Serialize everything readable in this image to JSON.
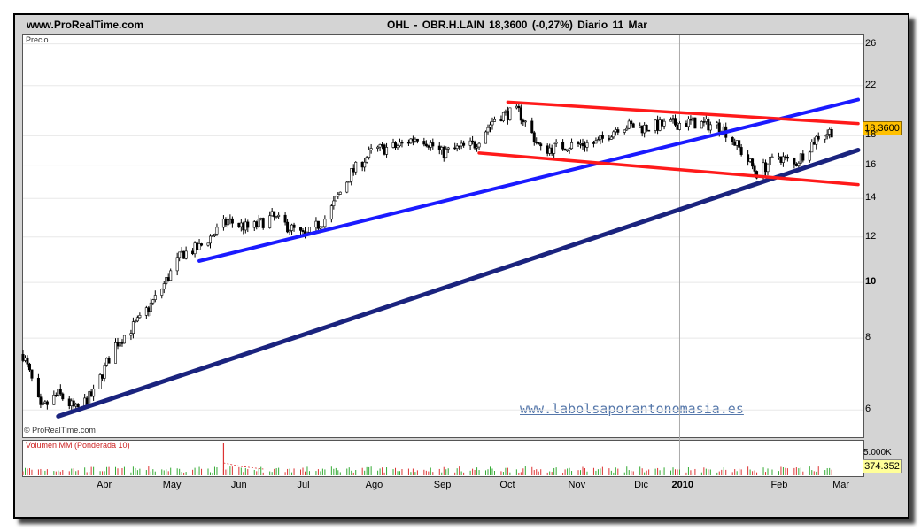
{
  "header": {
    "site": "www.ProRealTime.com",
    "quote": "OHL - OBR.H.LAIN    18,3600 (-0,27%)   Diario  11 Mar"
  },
  "panel_labels": {
    "price": "Precio",
    "copyright": "© ProRealTime.com",
    "volume": "Volumen MM (Ponderada 10)"
  },
  "watermark": "www.labolsaporantonomasia.es",
  "last_price_label": "18,3600",
  "last_volume_label": "374.352",
  "volume_scale_label": "5.000K",
  "colors": {
    "candle": "#000000",
    "blue_trendline": "#1a1aff",
    "navy_trendline": "#1a237e",
    "red_channel": "#ff1a1a",
    "volume_up": "#33aa33",
    "volume_down": "#dd3333",
    "last_price_bg": "#ffc000"
  },
  "chart_data": {
    "type": "candlestick",
    "title": "OHL - OBR.H.LAIN",
    "y_scale": "log",
    "ylim": [
      5.4,
      27
    ],
    "y_ticks": [
      26,
      22,
      18,
      16,
      14,
      12,
      10,
      8,
      6
    ],
    "x_ticks": [
      "Abr",
      "May",
      "Jun",
      "Jul",
      "Ago",
      "Sep",
      "Oct",
      "Nov",
      "Dic",
      "2010",
      "Feb",
      "Mar"
    ],
    "last_close": 18.36,
    "change_pct": -0.27,
    "close_path": [
      {
        "date": "2009-03-09",
        "close": 7.5
      },
      {
        "date": "2009-03-17",
        "close": 6.0
      },
      {
        "date": "2009-03-25",
        "close": 6.4
      },
      {
        "date": "2009-04-02",
        "close": 6.0
      },
      {
        "date": "2009-04-10",
        "close": 6.4
      },
      {
        "date": "2009-04-20",
        "close": 7.8
      },
      {
        "date": "2009-05-01",
        "close": 8.6
      },
      {
        "date": "2009-05-10",
        "close": 9.6
      },
      {
        "date": "2009-05-20",
        "close": 11.2
      },
      {
        "date": "2009-05-28",
        "close": 11.5
      },
      {
        "date": "2009-06-10",
        "close": 12.8
      },
      {
        "date": "2009-06-20",
        "close": 12.4
      },
      {
        "date": "2009-06-30",
        "close": 13.0
      },
      {
        "date": "2009-07-15",
        "close": 12.0
      },
      {
        "date": "2009-07-25",
        "close": 13.0
      },
      {
        "date": "2009-08-05",
        "close": 15.5
      },
      {
        "date": "2009-08-15",
        "close": 17.0
      },
      {
        "date": "2009-08-25",
        "close": 17.2
      },
      {
        "date": "2009-09-05",
        "close": 18.0
      },
      {
        "date": "2009-09-15",
        "close": 16.8
      },
      {
        "date": "2009-09-30",
        "close": 17.4
      },
      {
        "date": "2009-10-10",
        "close": 19.5
      },
      {
        "date": "2009-10-20",
        "close": 19.8
      },
      {
        "date": "2009-10-30",
        "close": 17.0
      },
      {
        "date": "2009-11-10",
        "close": 17.3
      },
      {
        "date": "2009-11-25",
        "close": 17.5
      },
      {
        "date": "2009-12-05",
        "close": 18.8
      },
      {
        "date": "2009-12-15",
        "close": 18.6
      },
      {
        "date": "2010-01-05",
        "close": 19.0
      },
      {
        "date": "2010-01-20",
        "close": 18.7
      },
      {
        "date": "2010-02-05",
        "close": 15.5
      },
      {
        "date": "2010-02-15",
        "close": 16.6
      },
      {
        "date": "2010-02-22",
        "close": 16.0
      },
      {
        "date": "2010-03-05",
        "close": 18.0
      },
      {
        "date": "2010-03-11",
        "close": 18.36
      }
    ],
    "trendlines": [
      {
        "color": "blue",
        "from": {
          "date": "2009-05-28",
          "value": 10.9
        },
        "to": {
          "date": "2010-03-23",
          "value": 20.8
        }
      },
      {
        "color": "navy",
        "from": {
          "date": "2009-03-25",
          "value": 5.85
        },
        "to": {
          "date": "2010-03-23",
          "value": 17.0
        }
      },
      {
        "color": "red",
        "from": {
          "date": "2009-10-15",
          "value": 20.6
        },
        "to": {
          "date": "2010-03-23",
          "value": 18.9
        }
      },
      {
        "color": "red",
        "from": {
          "date": "2009-10-02",
          "value": 16.8
        },
        "to": {
          "date": "2010-03-23",
          "value": 14.8
        }
      }
    ],
    "volume_spike_date": "2009-06-08"
  }
}
